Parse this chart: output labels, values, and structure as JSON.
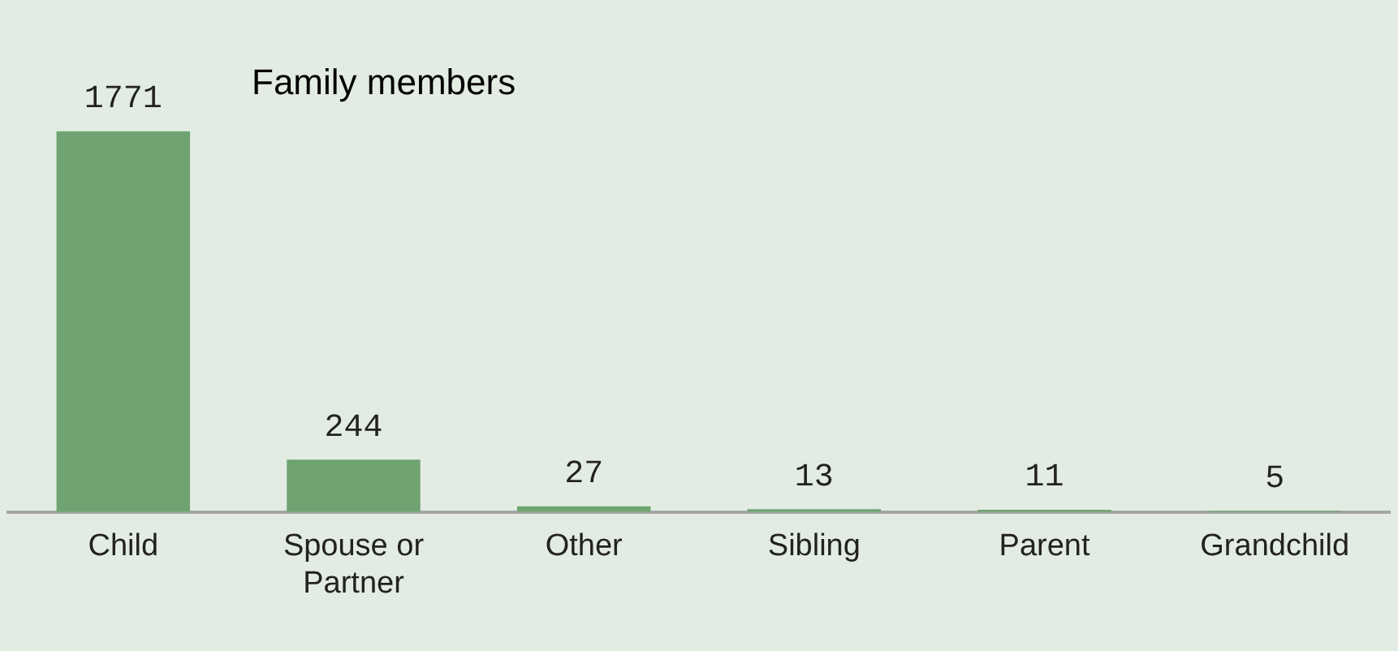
{
  "chart_data": {
    "type": "bar",
    "title": "Family members",
    "categories": [
      "Child",
      "Spouse or Partner",
      "Other",
      "Sibling",
      "Parent",
      "Grandchild"
    ],
    "values": [
      1771,
      244,
      27,
      13,
      11,
      5
    ],
    "color": "#6fa472",
    "data_labels": true,
    "grid": false,
    "legend": false
  }
}
